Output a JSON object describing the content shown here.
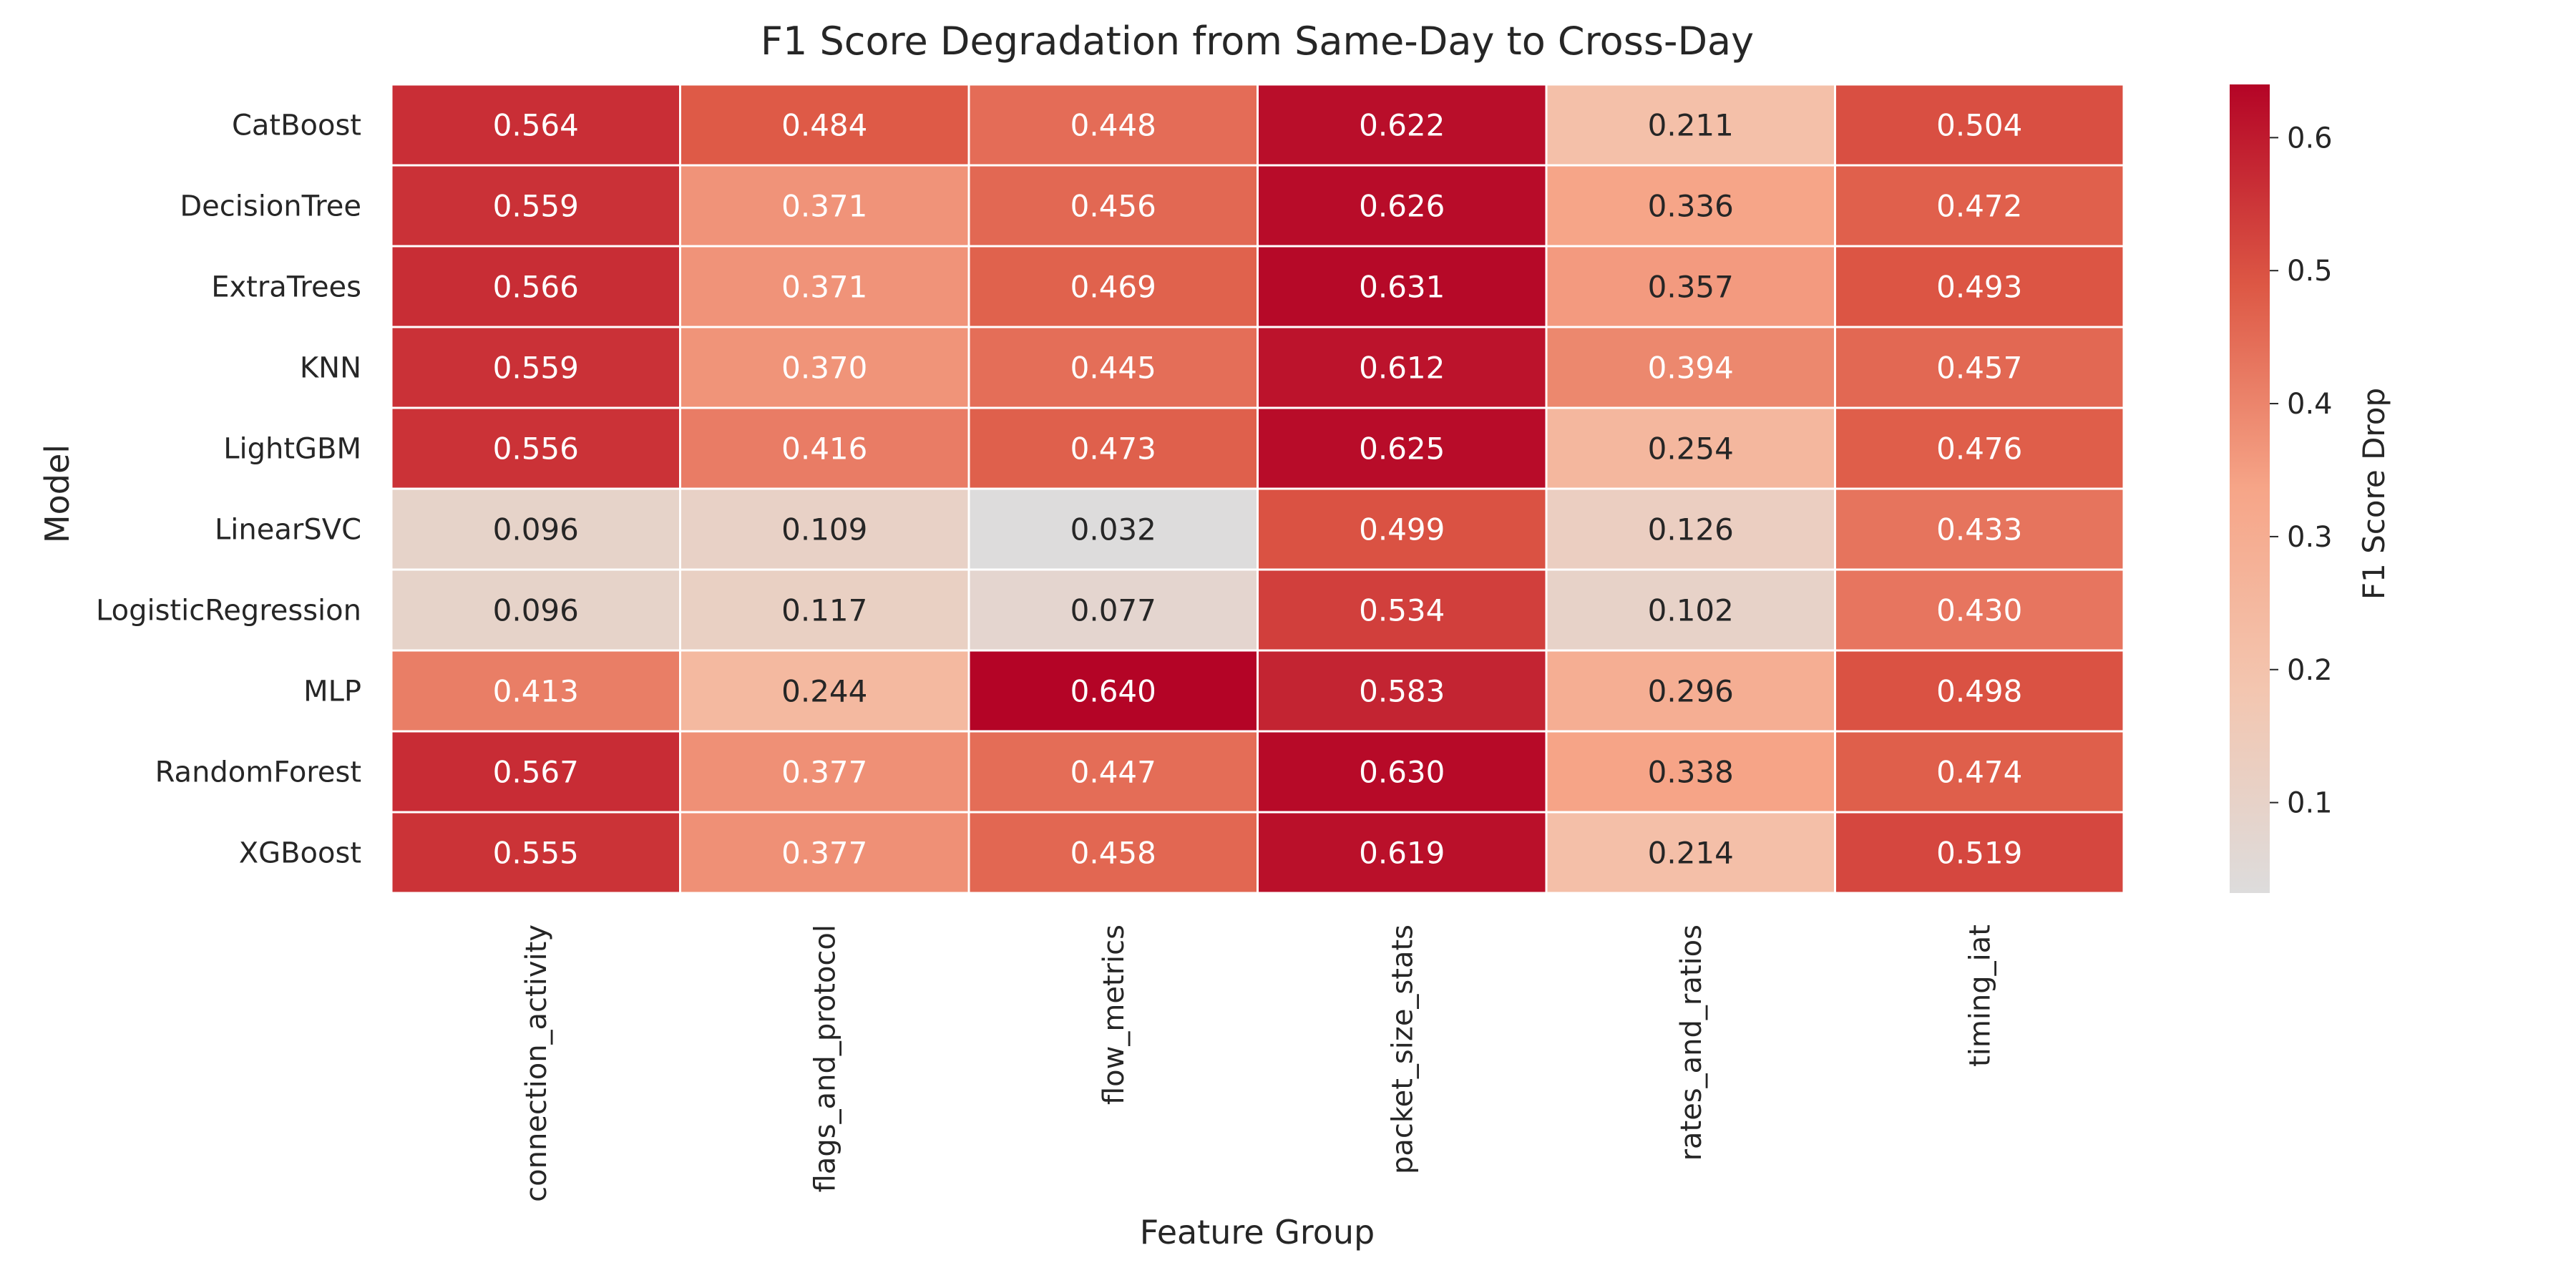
{
  "chart_data": {
    "type": "heatmap",
    "title": "F1 Score Degradation from Same-Day to Cross-Day",
    "xlabel": "Feature Group",
    "ylabel": "Model",
    "colorbar_label": "F1 Score Drop",
    "x_categories": [
      "connection_activity",
      "flags_and_protocol",
      "flow_metrics",
      "packet_size_stats",
      "rates_and_ratios",
      "timing_iat"
    ],
    "y_categories": [
      "CatBoost",
      "DecisionTree",
      "ExtraTrees",
      "KNN",
      "LightGBM",
      "LinearSVC",
      "LogisticRegression",
      "MLP",
      "RandomForest",
      "XGBoost"
    ],
    "values": [
      [
        0.564,
        0.484,
        0.448,
        0.622,
        0.211,
        0.504
      ],
      [
        0.559,
        0.371,
        0.456,
        0.626,
        0.336,
        0.472
      ],
      [
        0.566,
        0.371,
        0.469,
        0.631,
        0.357,
        0.493
      ],
      [
        0.559,
        0.37,
        0.445,
        0.612,
        0.394,
        0.457
      ],
      [
        0.556,
        0.416,
        0.473,
        0.625,
        0.254,
        0.476
      ],
      [
        0.096,
        0.109,
        0.032,
        0.499,
        0.126,
        0.433
      ],
      [
        0.096,
        0.117,
        0.077,
        0.534,
        0.102,
        0.43
      ],
      [
        0.413,
        0.244,
        0.64,
        0.583,
        0.296,
        0.498
      ],
      [
        0.567,
        0.377,
        0.447,
        0.63,
        0.338,
        0.474
      ],
      [
        0.555,
        0.377,
        0.458,
        0.619,
        0.214,
        0.519
      ]
    ],
    "value_range": [
      0.032,
      0.64
    ],
    "colorbar_ticks": [
      0.1,
      0.2,
      0.3,
      0.4,
      0.5,
      0.6
    ],
    "colormap": "coolwarm (upper half)",
    "colors": {
      "low": "#dddcdc",
      "mid": "#f6a588",
      "high": "#b40426"
    }
  }
}
